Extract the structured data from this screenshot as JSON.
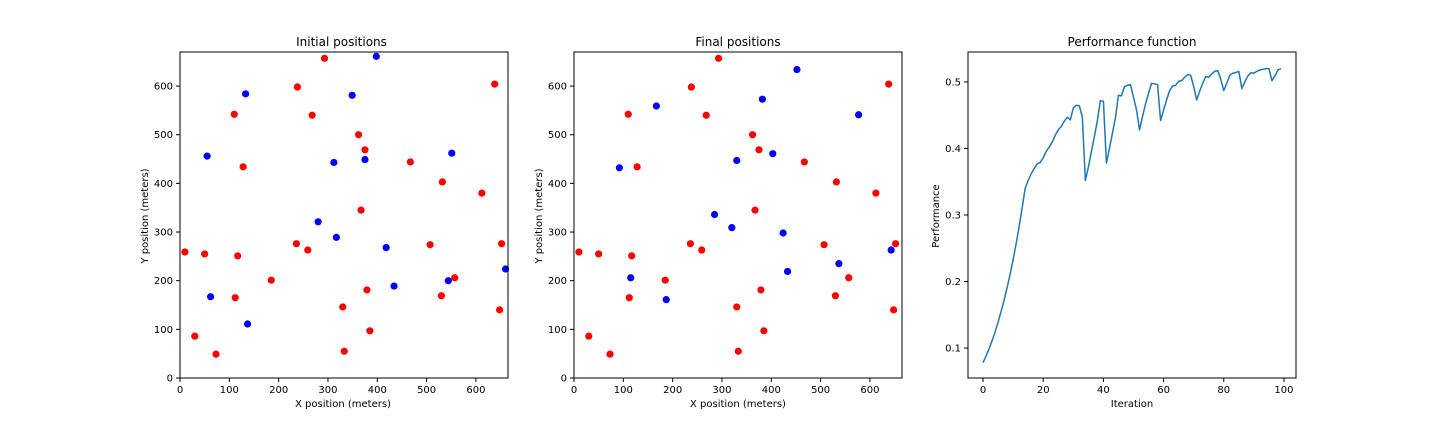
{
  "colors": {
    "red": "#ff0000",
    "blue": "#0000ff",
    "line": "#1f77b4"
  },
  "chart_data": [
    {
      "type": "scatter",
      "title": "Initial positions",
      "xlabel": "X position (meters)",
      "ylabel": "Y position (meters)",
      "xlim": [
        0,
        665
      ],
      "ylim": [
        0,
        670
      ],
      "xticks": [
        0,
        100,
        200,
        300,
        400,
        500,
        600
      ],
      "yticks": [
        0,
        100,
        200,
        300,
        400,
        500,
        600
      ],
      "grid": false,
      "series": [
        {
          "color": "red",
          "points": [
            [
              10,
              259
            ],
            [
              30,
              86
            ],
            [
              50,
              255
            ],
            [
              73,
              49
            ],
            [
              110,
              542
            ],
            [
              112,
              165
            ],
            [
              117,
              251
            ],
            [
              128,
              434
            ],
            [
              185,
              201
            ],
            [
              236,
              276
            ],
            [
              238,
              598
            ],
            [
              259,
              263
            ],
            [
              268,
              540
            ],
            [
              293,
              657
            ],
            [
              330,
              146
            ],
            [
              333,
              55
            ],
            [
              362,
              500
            ],
            [
              367,
              345
            ],
            [
              375,
              469
            ],
            [
              379,
              181
            ],
            [
              385,
              97
            ],
            [
              467,
              444
            ],
            [
              507,
              274
            ],
            [
              530,
              169
            ],
            [
              532,
              403
            ],
            [
              557,
              206
            ],
            [
              612,
              380
            ],
            [
              638,
              604
            ],
            [
              648,
              140
            ],
            [
              652,
              276
            ]
          ]
        },
        {
          "color": "blue",
          "points": [
            [
              55,
              456
            ],
            [
              62,
              167
            ],
            [
              133,
              584
            ],
            [
              137,
              111
            ],
            [
              280,
              321
            ],
            [
              312,
              443
            ],
            [
              317,
              289
            ],
            [
              349,
              581
            ],
            [
              375,
              449
            ],
            [
              398,
              661
            ],
            [
              418,
              268
            ],
            [
              434,
              189
            ],
            [
              544,
              200
            ],
            [
              551,
              462
            ],
            [
              660,
              224
            ]
          ]
        }
      ]
    },
    {
      "type": "scatter",
      "title": "Final positions",
      "xlabel": "X position (meters)",
      "ylabel": "Y position (meters)",
      "xlim": [
        0,
        665
      ],
      "ylim": [
        0,
        670
      ],
      "xticks": [
        0,
        100,
        200,
        300,
        400,
        500,
        600
      ],
      "yticks": [
        0,
        100,
        200,
        300,
        400,
        500,
        600
      ],
      "grid": false,
      "series": [
        {
          "color": "red",
          "points": [
            [
              10,
              259
            ],
            [
              30,
              86
            ],
            [
              50,
              255
            ],
            [
              73,
              49
            ],
            [
              110,
              542
            ],
            [
              112,
              165
            ],
            [
              117,
              251
            ],
            [
              128,
              434
            ],
            [
              185,
              201
            ],
            [
              236,
              276
            ],
            [
              238,
              598
            ],
            [
              259,
              263
            ],
            [
              268,
              540
            ],
            [
              293,
              657
            ],
            [
              330,
              146
            ],
            [
              333,
              55
            ],
            [
              362,
              500
            ],
            [
              367,
              345
            ],
            [
              375,
              469
            ],
            [
              379,
              181
            ],
            [
              385,
              97
            ],
            [
              467,
              444
            ],
            [
              507,
              274
            ],
            [
              530,
              169
            ],
            [
              532,
              403
            ],
            [
              557,
              206
            ],
            [
              612,
              380
            ],
            [
              638,
              604
            ],
            [
              648,
              140
            ],
            [
              652,
              276
            ]
          ]
        },
        {
          "color": "blue",
          "points": [
            [
              92,
              432
            ],
            [
              115,
              206
            ],
            [
              167,
              559
            ],
            [
              187,
              161
            ],
            [
              285,
              336
            ],
            [
              320,
              309
            ],
            [
              330,
              447
            ],
            [
              382,
              573
            ],
            [
              403,
              461
            ],
            [
              424,
              298
            ],
            [
              433,
              219
            ],
            [
              452,
              634
            ],
            [
              537,
              235
            ],
            [
              577,
              541
            ],
            [
              643,
              263
            ]
          ]
        }
      ]
    },
    {
      "type": "line",
      "title": "Performance function",
      "xlabel": "Iteration",
      "ylabel": "Performance",
      "xlim": [
        -5,
        104
      ],
      "ylim": [
        0.055,
        0.545
      ],
      "xticks": [
        0,
        20,
        40,
        60,
        80,
        100
      ],
      "yticks": [
        0.1,
        0.2,
        0.3,
        0.4,
        0.5
      ],
      "yticklabels": [
        "0.1",
        "0.2",
        "0.3",
        "0.4",
        "0.5"
      ],
      "grid": false,
      "series": [
        {
          "color": "line",
          "x": [
            0,
            1,
            2,
            3,
            4,
            5,
            6,
            7,
            8,
            9,
            10,
            11,
            12,
            13,
            14,
            15,
            16,
            17,
            18,
            19,
            20,
            21,
            22,
            23,
            24,
            25,
            26,
            27,
            28,
            29,
            30,
            31,
            32,
            33,
            34,
            35,
            36,
            37,
            38,
            39,
            40,
            41,
            42,
            43,
            44,
            45,
            46,
            47,
            48,
            49,
            50,
            51,
            52,
            53,
            54,
            55,
            56,
            57,
            58,
            59,
            60,
            61,
            62,
            63,
            64,
            65,
            66,
            67,
            68,
            69,
            70,
            71,
            72,
            73,
            74,
            75,
            76,
            77,
            78,
            79,
            80,
            81,
            82,
            83,
            84,
            85,
            86,
            87,
            88,
            89,
            90,
            91,
            92,
            93,
            94,
            95,
            96,
            97,
            98,
            99
          ],
          "y": [
            0.078,
            0.088,
            0.099,
            0.111,
            0.124,
            0.139,
            0.155,
            0.172,
            0.191,
            0.211,
            0.233,
            0.257,
            0.283,
            0.311,
            0.34,
            0.352,
            0.362,
            0.37,
            0.377,
            0.379,
            0.386,
            0.396,
            0.402,
            0.41,
            0.42,
            0.428,
            0.433,
            0.441,
            0.447,
            0.443,
            0.461,
            0.465,
            0.464,
            0.447,
            0.352,
            0.372,
            0.395,
            0.418,
            0.442,
            0.472,
            0.471,
            0.378,
            0.4,
            0.423,
            0.446,
            0.48,
            0.479,
            0.493,
            0.495,
            0.496,
            0.477,
            0.458,
            0.428,
            0.448,
            0.467,
            0.483,
            0.498,
            0.497,
            0.496,
            0.442,
            0.458,
            0.473,
            0.487,
            0.494,
            0.495,
            0.501,
            0.502,
            0.507,
            0.511,
            0.51,
            0.493,
            0.473,
            0.486,
            0.498,
            0.508,
            0.507,
            0.512,
            0.516,
            0.517,
            0.504,
            0.487,
            0.498,
            0.51,
            0.513,
            0.514,
            0.516,
            0.49,
            0.5,
            0.509,
            0.514,
            0.513,
            0.516,
            0.518,
            0.519,
            0.52,
            0.52,
            0.502,
            0.509,
            0.518,
            0.52
          ]
        }
      ]
    }
  ]
}
